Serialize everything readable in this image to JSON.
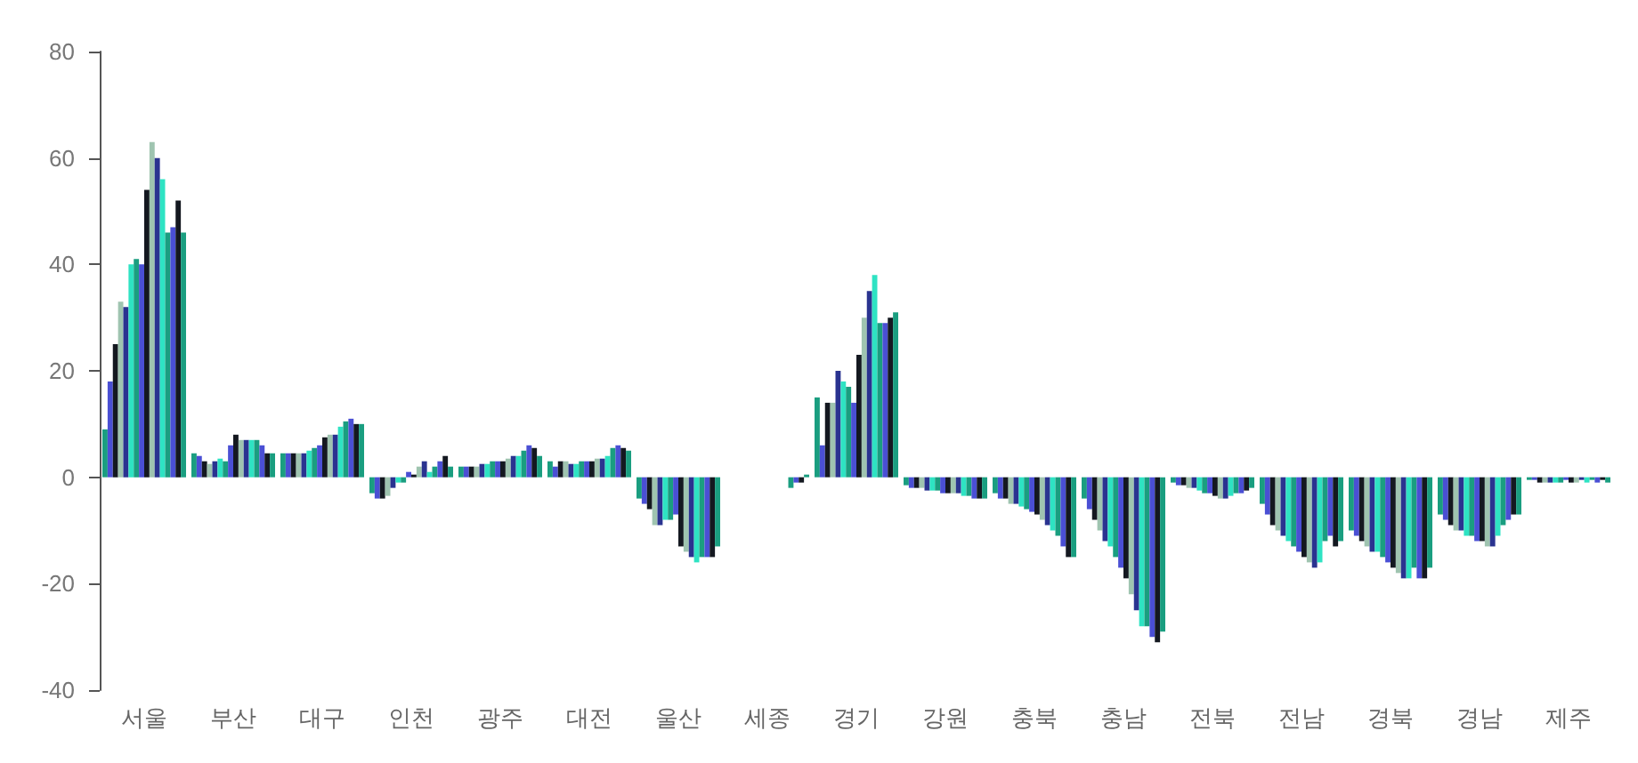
{
  "chart_data": {
    "type": "bar",
    "categories": [
      "서울",
      "부산",
      "대구",
      "인천",
      "광주",
      "대전",
      "울산",
      "세종",
      "경기",
      "강원",
      "충북",
      "충남",
      "전북",
      "전남",
      "경북",
      "경남",
      "제주"
    ],
    "ylim": [
      -40,
      80
    ],
    "yticks": [
      -40,
      -20,
      0,
      20,
      40,
      60,
      80
    ],
    "series": [
      {
        "color": "#1a9e80",
        "values": [
          9,
          4.5,
          4.5,
          -3,
          2,
          3,
          -4,
          null,
          15,
          -1.5,
          -3,
          -4,
          -1,
          -5,
          -10,
          -7,
          -0.5
        ]
      },
      {
        "color": "#4a4fd4",
        "values": [
          18,
          4,
          4.5,
          -4,
          2,
          2,
          -5,
          null,
          6,
          -2,
          -4,
          -6,
          -1.5,
          -7,
          -11,
          -8,
          -0.5
        ]
      },
      {
        "color": "#141820",
        "values": [
          25,
          3,
          4.5,
          -4,
          2,
          3,
          -6,
          null,
          14,
          -2,
          -4,
          -8,
          -1.5,
          -9,
          -12,
          -9,
          -1
        ]
      },
      {
        "color": "#9fc4b0",
        "values": [
          33,
          2.5,
          4.5,
          -3.5,
          2,
          3,
          -9,
          null,
          14,
          -2,
          -5,
          -10,
          -2,
          -10,
          -13,
          -10,
          -1
        ]
      },
      {
        "color": "#2a3390",
        "values": [
          32,
          3,
          4.5,
          -2,
          2.5,
          2.5,
          -9,
          null,
          20,
          -2.5,
          -5,
          -12,
          -2,
          -11,
          -14,
          -10,
          -1
        ]
      },
      {
        "color": "#2ee3c3",
        "values": [
          40,
          3.5,
          5,
          -1,
          2.5,
          2.5,
          -8,
          null,
          18,
          -2.5,
          -5.5,
          -13,
          -2.5,
          -12,
          -14,
          -11,
          -1
        ]
      },
      {
        "color": "#1a9e80",
        "values": [
          41,
          3,
          5.5,
          -1,
          3,
          3,
          -8,
          null,
          17,
          -2.5,
          -6,
          -15,
          -3,
          -13,
          -15,
          -11,
          -1
        ]
      },
      {
        "color": "#4a4fd4",
        "values": [
          40,
          6,
          6,
          1,
          3,
          3,
          -7,
          null,
          14,
          -3,
          -6.5,
          -17,
          -3,
          -14,
          -16,
          -12,
          -0.5
        ]
      },
      {
        "color": "#141820",
        "values": [
          54,
          8,
          7.5,
          0.5,
          3,
          3,
          -13,
          null,
          23,
          -3,
          -7,
          -19,
          -3.5,
          -15,
          -17,
          -12,
          -1
        ]
      },
      {
        "color": "#9fc4b0",
        "values": [
          63,
          7,
          8,
          2,
          3.5,
          3.5,
          -14,
          null,
          30,
          -3,
          -8,
          -22,
          -4,
          -16,
          -18,
          -13,
          -1
        ]
      },
      {
        "color": "#2a3390",
        "values": [
          60,
          7,
          8,
          3,
          4,
          3.5,
          -15,
          null,
          35,
          -3,
          -9,
          -25,
          -4,
          -17,
          -19,
          -13,
          -0.5
        ]
      },
      {
        "color": "#2ee3c3",
        "values": [
          56,
          7,
          9.5,
          1,
          4,
          4,
          -16,
          null,
          38,
          -3.5,
          -10,
          -28,
          -3.5,
          -16,
          -19,
          -11,
          -1
        ]
      },
      {
        "color": "#1a9e80",
        "values": [
          46,
          7,
          10.5,
          2,
          5,
          5.5,
          -15,
          -2,
          29,
          -3.5,
          -11,
          -28,
          -3,
          -12,
          -17,
          -9,
          -0.5
        ]
      },
      {
        "color": "#4a4fd4",
        "values": [
          47,
          6,
          11,
          3,
          6,
          6,
          -15,
          -1,
          29,
          -4,
          -13,
          -30,
          -3,
          -11,
          -19,
          -8,
          -1
        ]
      },
      {
        "color": "#141820",
        "values": [
          52,
          4.5,
          10,
          4,
          5.5,
          5.5,
          -15,
          -1,
          30,
          -4,
          -15,
          -31,
          -2.5,
          -13,
          -19,
          -7,
          -0.5
        ]
      },
      {
        "color": "#1a9e80",
        "values": [
          46,
          4.5,
          10,
          2,
          4,
          5,
          -13,
          0.5,
          31,
          -4,
          -15,
          -29,
          -2,
          -12,
          -17,
          -7,
          -1
        ]
      }
    ]
  }
}
